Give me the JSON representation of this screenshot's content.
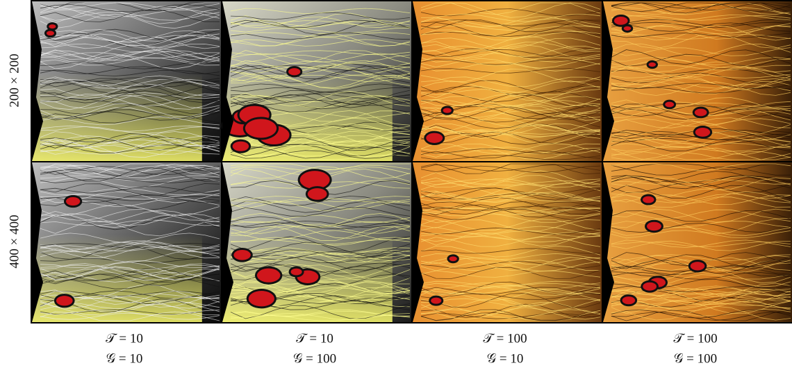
{
  "row_labels": [
    "200 × 200",
    "400 × 400"
  ],
  "columns": [
    {
      "t_label": "𝒯 = 10",
      "g_label": "𝒢 = 10"
    },
    {
      "t_label": "𝒯 = 10",
      "g_label": "𝒢 = 100"
    },
    {
      "t_label": "𝒯 = 100",
      "g_label": "𝒢 = 10"
    },
    {
      "t_label": "𝒯 = 100",
      "g_label": "𝒢 = 100"
    }
  ]
}
